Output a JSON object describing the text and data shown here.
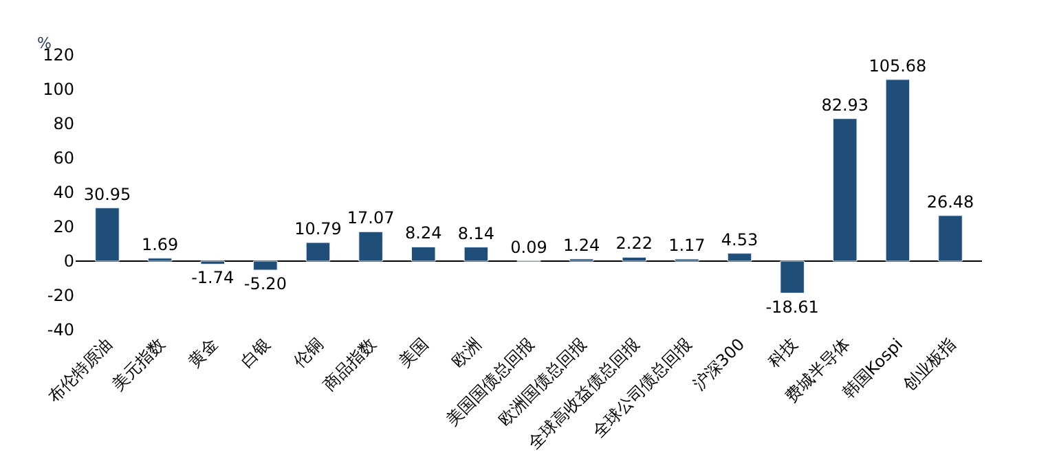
{
  "chart_data": {
    "type": "bar",
    "ylabel": "%",
    "categories": [
      "布伦特原油",
      "美元指数",
      "黄金",
      "白银",
      "伦铜",
      "商品指数",
      "美国",
      "欧洲",
      "美国国债总回报",
      "欧洲国债总回报",
      "全球高收益债总回报",
      "全球公司债总回报",
      "沪深300",
      "科技",
      "费城半导体",
      "韩国Kospi",
      "创业板指"
    ],
    "values": [
      30.95,
      1.69,
      -1.74,
      -5.2,
      10.79,
      17.07,
      8.24,
      8.14,
      0.09,
      1.24,
      2.22,
      1.17,
      4.53,
      -18.61,
      82.93,
      105.68,
      26.48
    ],
    "value_labels": [
      "30.95",
      "1.69",
      "-1.74",
      "-5.20",
      "10.79",
      "17.07",
      "8.24",
      "8.14",
      "0.09",
      "1.24",
      "2.22",
      "1.17",
      "4.53",
      "-18.61",
      "82.93",
      "105.68",
      "26.48"
    ],
    "color": "#1f4e79",
    "ylim": [
      -40,
      120
    ],
    "yticks": [
      -40,
      -20,
      0,
      20,
      40,
      60,
      80,
      100,
      120
    ]
  }
}
